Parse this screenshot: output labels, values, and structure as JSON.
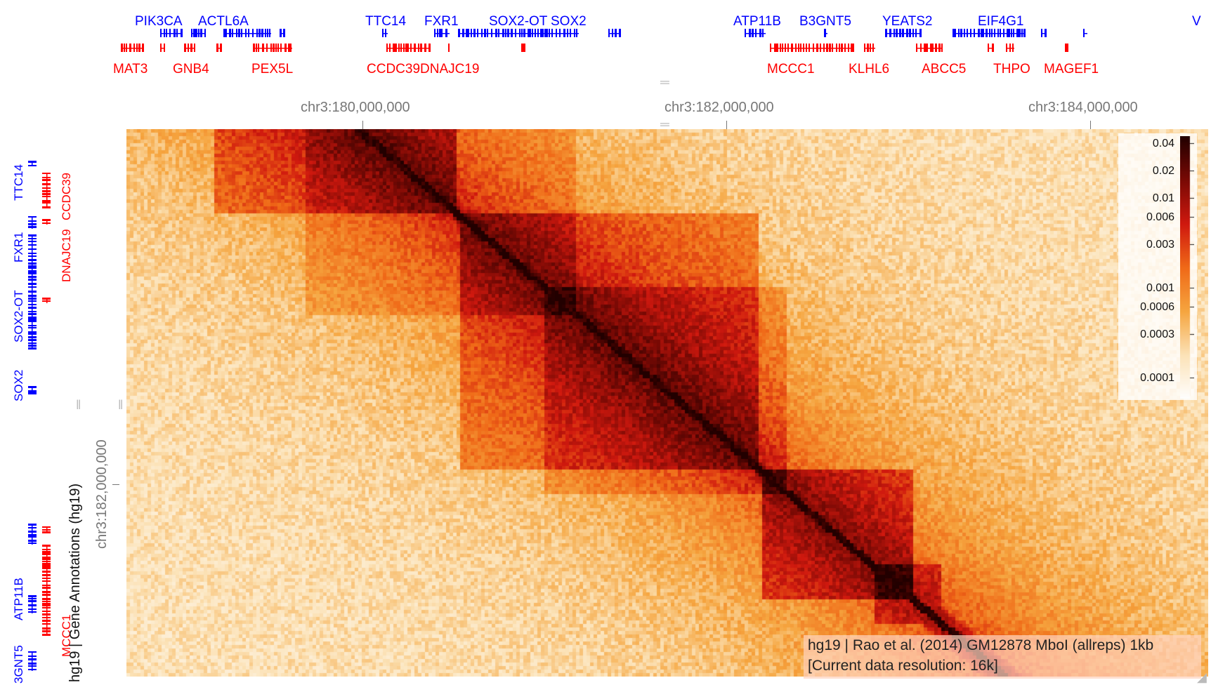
{
  "top_track": {
    "plus_labels": [
      "PIK3CA",
      "ACTL6A",
      "TTC14",
      "FXR1",
      "SOX2-OT",
      "SOX2",
      "ATP11B",
      "B3GNT5",
      "YEATS2",
      "EIF4G1",
      "V"
    ],
    "minus_labels": [
      "MAT3",
      "GNB4",
      "PEX5L",
      "CCDC39",
      "DNAJC19",
      "MCCC1",
      "KLHL6",
      "ABCC5",
      "THPO",
      "MAGEF1"
    ]
  },
  "left_track": {
    "title": "hg19 | Gene Annotations (hg19)",
    "plus_labels": [
      "TTC14",
      "FXR1",
      "SOX2-OT",
      "SOX2",
      "ATP11B",
      "3GNT5"
    ],
    "minus_labels": [
      "DNAJC19",
      "CCDC39",
      "MCCC1"
    ]
  },
  "top_axis": {
    "ticks": [
      "chr3:180,000,000",
      "chr3:182,000,000",
      "chr3:184,000,000"
    ]
  },
  "left_axis": {
    "ticks": [
      "chr3:182,000,000"
    ]
  },
  "colorbar": {
    "labels": [
      "0.04",
      "0.02",
      "0.01",
      "0.006",
      "0.003",
      "0.001",
      "0.0006",
      "0.0003",
      "0.0001"
    ],
    "colors": [
      "#220000",
      "#7a0a05",
      "#d0190f",
      "#f06a18",
      "#f6a640",
      "#fce3b8",
      "#ffffff"
    ]
  },
  "heatmap_info": {
    "line1": "hg19 | Rao et al. (2014) GM12878 MboI (allreps) 1kb",
    "line2": "[Current data resolution: 16k]"
  }
}
